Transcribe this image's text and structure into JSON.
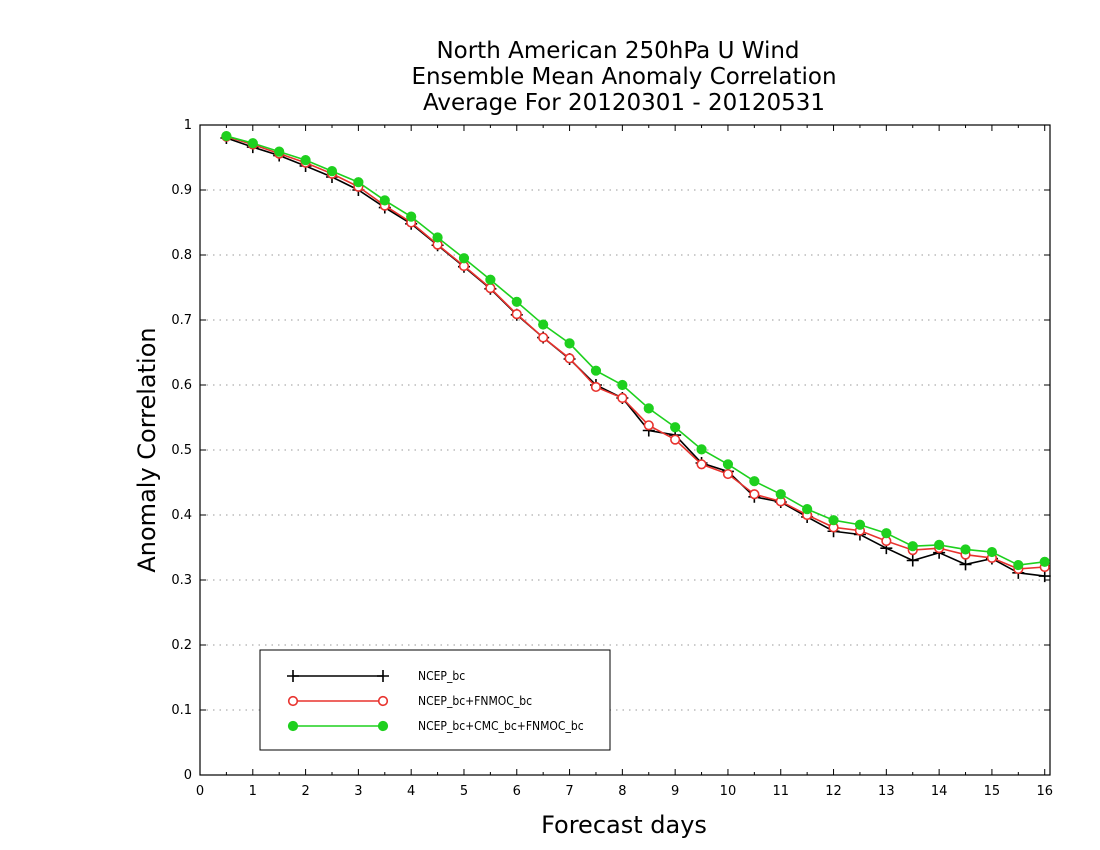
{
  "chart_data": {
    "type": "line",
    "title": [
      "North American 250hPa U Wind",
      "Ensemble Mean Anomaly Correlation",
      "Average For 20120301 - 20120531"
    ],
    "xlabel": "Forecast days",
    "ylabel": "Anomaly Correlation",
    "xlim": [
      0,
      16.1
    ],
    "ylim": [
      0,
      1
    ],
    "x_ticks": [
      "0",
      "1",
      "2",
      "3",
      "4",
      "5",
      "6",
      "7",
      "8",
      "9",
      "10",
      "11",
      "12",
      "13",
      "14",
      "15",
      "16"
    ],
    "y_ticks": [
      "0",
      "0.1",
      "0.2",
      "0.3",
      "0.4",
      "0.5",
      "0.6",
      "0.7",
      "0.8",
      "0.9",
      "1"
    ],
    "grid": "horizontal-dotted",
    "legend_position": "bottom-left",
    "x": [
      0.5,
      1,
      1.5,
      2,
      2.5,
      3,
      3.5,
      4,
      4.5,
      5,
      5.5,
      6,
      6.5,
      7,
      7.5,
      8,
      8.5,
      9,
      9.5,
      10,
      10.5,
      11,
      11.5,
      12,
      12.5,
      13,
      13.5,
      14,
      14.5,
      15,
      15.5,
      16
    ],
    "series": [
      {
        "name": "NCEP_bc",
        "color": "#000000",
        "marker": "plus",
        "values": [
          0.98,
          0.966,
          0.953,
          0.937,
          0.92,
          0.9,
          0.873,
          0.848,
          0.815,
          0.782,
          0.748,
          0.708,
          0.673,
          0.64,
          0.6,
          0.58,
          0.53,
          0.523,
          0.48,
          0.467,
          0.428,
          0.42,
          0.397,
          0.375,
          0.37,
          0.349,
          0.33,
          0.342,
          0.324,
          0.333,
          0.311,
          0.306
        ]
      },
      {
        "name": "NCEP_bc+FNMOC_bc",
        "color": "#e8322d",
        "marker": "open-circle",
        "values": [
          0.982,
          0.97,
          0.956,
          0.942,
          0.925,
          0.905,
          0.876,
          0.85,
          0.816,
          0.783,
          0.749,
          0.709,
          0.673,
          0.641,
          0.597,
          0.58,
          0.538,
          0.516,
          0.478,
          0.463,
          0.432,
          0.421,
          0.4,
          0.381,
          0.376,
          0.36,
          0.346,
          0.349,
          0.339,
          0.334,
          0.317,
          0.32
        ]
      },
      {
        "name": "NCEP_bc+CMC_bc+FNMOC_bc",
        "color": "#1ed01e",
        "marker": "filled-circle",
        "values": [
          0.983,
          0.972,
          0.959,
          0.946,
          0.929,
          0.912,
          0.884,
          0.859,
          0.827,
          0.795,
          0.762,
          0.728,
          0.693,
          0.664,
          0.622,
          0.6,
          0.564,
          0.535,
          0.501,
          0.478,
          0.452,
          0.432,
          0.409,
          0.392,
          0.385,
          0.372,
          0.352,
          0.354,
          0.347,
          0.343,
          0.323,
          0.328
        ]
      }
    ]
  }
}
